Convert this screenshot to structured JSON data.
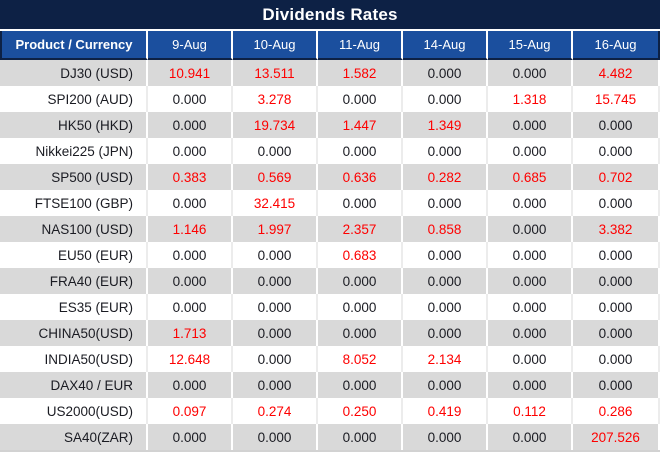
{
  "title": "Dividends Rates",
  "colors": {
    "title_bar_bg": "#0d2145",
    "header_row_bg": "#1b4f9e",
    "header_text": "#ffffff",
    "row_alt_bg": "#d9d9d9",
    "row_bg": "#ffffff",
    "value_zero_text": "#1a1b22",
    "value_positive_text": "#fe0000"
  },
  "chart_data": {
    "type": "table",
    "title": "Dividends Rates",
    "product_header": "Product / Currency",
    "date_headers": [
      "9-Aug",
      "10-Aug",
      "11-Aug",
      "14-Aug",
      "15-Aug",
      "16-Aug"
    ],
    "rows": [
      {
        "product": "DJ30 (USD)",
        "values": [
          "10.941",
          "13.511",
          "1.582",
          "0.000",
          "0.000",
          "4.482"
        ]
      },
      {
        "product": "SPI200 (AUD)",
        "values": [
          "0.000",
          "3.278",
          "0.000",
          "0.000",
          "1.318",
          "15.745"
        ]
      },
      {
        "product": "HK50 (HKD)",
        "values": [
          "0.000",
          "19.734",
          "1.447",
          "1.349",
          "0.000",
          "0.000"
        ]
      },
      {
        "product": "Nikkei225 (JPN)",
        "values": [
          "0.000",
          "0.000",
          "0.000",
          "0.000",
          "0.000",
          "0.000"
        ]
      },
      {
        "product": "SP500 (USD)",
        "values": [
          "0.383",
          "0.569",
          "0.636",
          "0.282",
          "0.685",
          "0.702"
        ]
      },
      {
        "product": "FTSE100 (GBP)",
        "values": [
          "0.000",
          "32.415",
          "0.000",
          "0.000",
          "0.000",
          "0.000"
        ]
      },
      {
        "product": "NAS100 (USD)",
        "values": [
          "1.146",
          "1.997",
          "2.357",
          "0.858",
          "0.000",
          "3.382"
        ]
      },
      {
        "product": "EU50 (EUR)",
        "values": [
          "0.000",
          "0.000",
          "0.683",
          "0.000",
          "0.000",
          "0.000"
        ]
      },
      {
        "product": "FRA40 (EUR)",
        "values": [
          "0.000",
          "0.000",
          "0.000",
          "0.000",
          "0.000",
          "0.000"
        ]
      },
      {
        "product": "ES35 (EUR)",
        "values": [
          "0.000",
          "0.000",
          "0.000",
          "0.000",
          "0.000",
          "0.000"
        ]
      },
      {
        "product": "CHINA50(USD)",
        "values": [
          "1.713",
          "0.000",
          "0.000",
          "0.000",
          "0.000",
          "0.000"
        ]
      },
      {
        "product": "INDIA50(USD)",
        "values": [
          "12.648",
          "0.000",
          "8.052",
          "2.134",
          "0.000",
          "0.000"
        ]
      },
      {
        "product": "DAX40 / EUR",
        "values": [
          "0.000",
          "0.000",
          "0.000",
          "0.000",
          "0.000",
          "0.000"
        ]
      },
      {
        "product": "US2000(USD)",
        "values": [
          "0.097",
          "0.274",
          "0.250",
          "0.419",
          "0.112",
          "0.286"
        ]
      },
      {
        "product": "SA40(ZAR)",
        "values": [
          "0.000",
          "0.000",
          "0.000",
          "0.000",
          "0.000",
          "207.526"
        ]
      }
    ]
  }
}
